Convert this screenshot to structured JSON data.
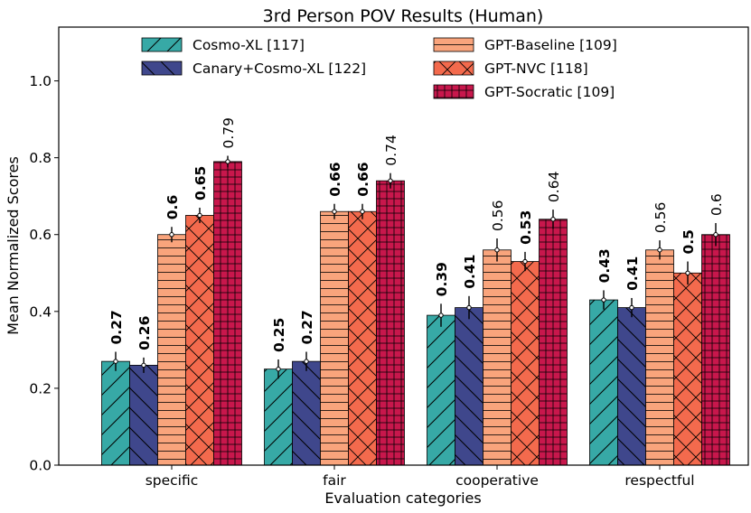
{
  "chart_data": {
    "type": "bar",
    "title": "3rd Person POV Results (Human)",
    "xlabel": "Evaluation categories",
    "ylabel": "Mean Normalized Scores",
    "ylim": [
      0,
      1.14
    ],
    "yticks": [
      "0.0",
      "0.2",
      "0.4",
      "0.6",
      "0.8",
      "1.0"
    ],
    "ytick_values": [
      0,
      0.2,
      0.4,
      0.6,
      0.8,
      1.0
    ],
    "categories": [
      "specific",
      "fair",
      "cooperative",
      "respectful"
    ],
    "legend_position": "top",
    "series": [
      {
        "name": "Cosmo-XL [117]",
        "color": "#37a9a6",
        "hatch": "diag-up",
        "values": [
          0.27,
          0.25,
          0.39,
          0.43
        ],
        "errors": [
          0.025,
          0.025,
          0.03,
          0.025
        ],
        "labels": [
          "0.27",
          "0.25",
          "0.39",
          "0.43"
        ],
        "bold": [
          true,
          true,
          true,
          true
        ]
      },
      {
        "name": "Canary+Cosmo-XL [122]",
        "color": "#3f478c",
        "hatch": "diag-down",
        "values": [
          0.26,
          0.27,
          0.41,
          0.41
        ],
        "errors": [
          0.02,
          0.025,
          0.03,
          0.025
        ],
        "labels": [
          "0.26",
          "0.27",
          "0.41",
          "0.41"
        ],
        "bold": [
          true,
          true,
          true,
          true
        ]
      },
      {
        "name": "GPT-Baseline [109]",
        "color": "#f9a47c",
        "hatch": "horizontal",
        "values": [
          0.6,
          0.66,
          0.56,
          0.56
        ],
        "errors": [
          0.02,
          0.02,
          0.03,
          0.025
        ],
        "labels": [
          "0.6",
          "0.66",
          "0.56",
          "0.56"
        ],
        "bold": [
          true,
          true,
          false,
          false
        ]
      },
      {
        "name": "GPT-NVC [118]",
        "color": "#f36a4d",
        "hatch": "cross",
        "values": [
          0.65,
          0.66,
          0.53,
          0.5
        ],
        "errors": [
          0.02,
          0.02,
          0.025,
          0.03
        ],
        "labels": [
          "0.65",
          "0.66",
          "0.53",
          "0.5"
        ],
        "bold": [
          true,
          true,
          true,
          true
        ]
      },
      {
        "name": "GPT-Socratic [109]",
        "color": "#c8174c",
        "hatch": "grid",
        "values": [
          0.79,
          0.74,
          0.64,
          0.6
        ],
        "errors": [
          0.015,
          0.02,
          0.025,
          0.03
        ],
        "labels": [
          "0.79",
          "0.74",
          "0.64",
          "0.6"
        ],
        "bold": [
          false,
          false,
          false,
          false
        ]
      }
    ]
  }
}
